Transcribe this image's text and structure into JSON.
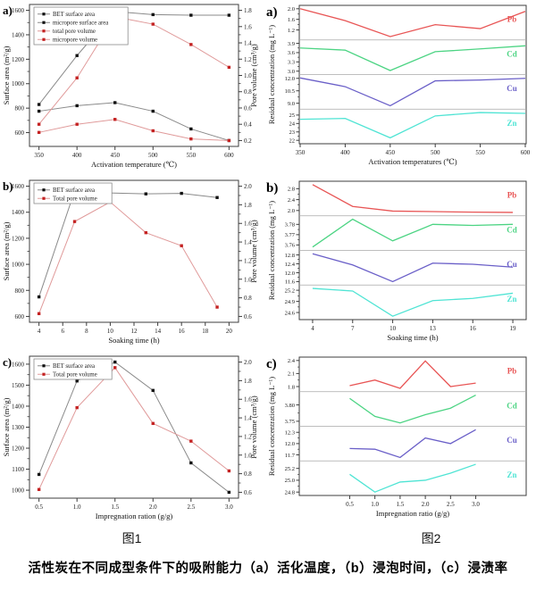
{
  "figure1": {
    "caption": "图1"
  },
  "figure2": {
    "caption": "图2"
  },
  "bottom_caption": "活性炭在不同成型条件下的吸附能力（a）活化温度，（b）浸泡时间，（c）浸渍率",
  "colors": {
    "frame": "#3c3c3c",
    "tick_text": "#1a1a1a",
    "separator": "#a9a9a9",
    "black_line": "#8a8a8a",
    "black_marker": "#111111",
    "red_line": "#e09a9a",
    "red_marker": "#c42222",
    "pb": "#e85555",
    "cd": "#4cd483",
    "cu": "#6a5fc8",
    "zn": "#4fe4d4"
  },
  "chart_data": [
    {
      "figure": "图1",
      "panel_label": "a)",
      "type": "line",
      "variant": "dual_axis",
      "xlabel": "Activation temperature (℃)",
      "x": [
        350,
        400,
        450,
        500,
        550,
        600
      ],
      "x_ticks": [
        350,
        400,
        450,
        500,
        550,
        600
      ],
      "x_tick_labels": [
        "350",
        "400",
        "450",
        "500",
        "550",
        "600"
      ],
      "left_axis": {
        "label": "Surface area (m²/g)",
        "ticks": [
          600,
          800,
          1000,
          1200,
          1400,
          1600
        ],
        "tick_labels": [
          "600",
          "800",
          "1000",
          "1200",
          "1400",
          "1600"
        ]
      },
      "right_axis": {
        "label": "Pore volume (cm³/g)",
        "ticks": [
          0.2,
          0.4,
          0.6,
          0.8,
          1.0,
          1.2,
          1.4,
          1.6,
          1.8
        ],
        "tick_labels": [
          "0.2",
          "0.4",
          "0.6",
          "0.8",
          "1.0",
          "1.2",
          "1.4",
          "1.6",
          "1.8"
        ]
      },
      "legend_position": "top-left",
      "series": [
        {
          "name": "BET surface area",
          "axis": "left",
          "color": "black",
          "values": [
            830,
            1230,
            1590,
            1565,
            1560,
            1560
          ]
        },
        {
          "name": "micropore surface area",
          "axis": "left",
          "color": "black",
          "values": [
            775,
            820,
            845,
            775,
            630,
            535
          ]
        },
        {
          "name": "total pore volume",
          "axis": "right",
          "color": "red",
          "values": [
            0.4,
            0.97,
            1.72,
            1.63,
            1.38,
            1.1
          ]
        },
        {
          "name": "micropore volume",
          "axis": "right",
          "color": "red",
          "values": [
            0.3,
            0.4,
            0.46,
            0.32,
            0.22,
            0.2
          ]
        }
      ]
    },
    {
      "figure": "图2",
      "panel_label": "a)",
      "type": "line",
      "variant": "stacked",
      "xlabel": "Activation temperatures (℃)",
      "ylabel": "Residual concentration (mg L⁻¹)",
      "x": [
        350,
        400,
        450,
        500,
        550,
        600
      ],
      "x_ticks": [
        350,
        400,
        450,
        500,
        550,
        600
      ],
      "x_tick_labels": [
        "350",
        "400",
        "450",
        "500",
        "550",
        "600"
      ],
      "panels": [
        {
          "label": "Pb",
          "color": "pb",
          "ticks": [
            1.2,
            1.6,
            2.0
          ],
          "tick_labels": [
            "1.2",
            "1.6",
            "2.0"
          ],
          "values": [
            2.0,
            1.55,
            0.95,
            1.4,
            1.25,
            1.9
          ]
        },
        {
          "label": "Cd",
          "color": "cd",
          "ticks": [
            3.0,
            3.3,
            3.6,
            3.9
          ],
          "tick_labels": [
            "3.0",
            "3.3",
            "3.6",
            "3.9"
          ],
          "values": [
            3.75,
            3.68,
            3.02,
            3.63,
            3.72,
            3.82
          ]
        },
        {
          "label": "Cu",
          "color": "cu",
          "ticks": [
            9.0,
            10.5,
            12.0
          ],
          "tick_labels": [
            "9.0",
            "10.5",
            "12.0"
          ],
          "values": [
            12.05,
            11.0,
            8.7,
            11.7,
            11.8,
            12.0
          ]
        },
        {
          "label": "Zn",
          "color": "zn",
          "ticks": [
            22,
            23,
            24,
            25
          ],
          "tick_labels": [
            "22",
            "23",
            "24",
            "25"
          ],
          "values": [
            24.5,
            24.6,
            22.3,
            24.9,
            25.3,
            25.2
          ]
        }
      ]
    },
    {
      "figure": "图1",
      "panel_label": "b)",
      "type": "line",
      "variant": "dual_axis",
      "xlabel": "Soaking time (h)",
      "x": [
        4,
        7,
        10,
        13,
        16,
        19
      ],
      "x_ticks": [
        4,
        6,
        8,
        10,
        12,
        14,
        16,
        18,
        20
      ],
      "x_tick_labels": [
        "4",
        "6",
        "8",
        "10",
        "12",
        "14",
        "16",
        "18",
        "20"
      ],
      "left_axis": {
        "label": "Surface area (m²/g)",
        "ticks": [
          600,
          800,
          1000,
          1200,
          1400,
          1600
        ],
        "tick_labels": [
          "600",
          "800",
          "1000",
          "1200",
          "1400",
          "1600"
        ]
      },
      "right_axis": {
        "label": "Pore volume (cm³/g)",
        "ticks": [
          0.6,
          0.8,
          1.0,
          1.2,
          1.4,
          1.6,
          1.8,
          2.0
        ],
        "tick_labels": [
          "0.6",
          "0.8",
          "1.0",
          "1.2",
          "1.4",
          "1.6",
          "1.8",
          "2.0"
        ]
      },
      "legend_position": "top-left",
      "series": [
        {
          "name": "BET surface area",
          "axis": "left",
          "color": "black",
          "values": [
            750,
            1563,
            1548,
            1541,
            1545,
            1513
          ]
        },
        {
          "name": "Total pore volume",
          "axis": "right",
          "color": "red",
          "values": [
            0.63,
            1.62,
            1.83,
            1.5,
            1.36,
            0.7
          ]
        }
      ]
    },
    {
      "figure": "图2",
      "panel_label": "b)",
      "type": "line",
      "variant": "stacked",
      "xlabel": "Soaking time (h)",
      "ylabel": "Residual concentration (mg L⁻¹)",
      "x": [
        4,
        7,
        10,
        13,
        16,
        19
      ],
      "x_ticks": [
        4,
        7,
        10,
        13,
        16,
        19
      ],
      "x_tick_labels": [
        "4",
        "7",
        "10",
        "13",
        "16",
        "19"
      ],
      "panels": [
        {
          "label": "Pb",
          "color": "pb",
          "ticks": [
            2.0,
            2.4,
            2.8
          ],
          "tick_labels": [
            "2.0",
            "2.4",
            "2.8"
          ],
          "values": [
            2.95,
            2.15,
            1.98,
            1.96,
            1.94,
            1.93
          ]
        },
        {
          "label": "Cd",
          "color": "cd",
          "ticks": [
            3.76,
            3.77,
            3.78
          ],
          "tick_labels": [
            "3.76",
            "3.77",
            "3.78"
          ],
          "values": [
            3.758,
            3.785,
            3.764,
            3.78,
            3.779,
            3.78
          ]
        },
        {
          "label": "Cu",
          "color": "cu",
          "ticks": [
            11.6,
            12.0,
            12.4,
            12.8
          ],
          "tick_labels": [
            "11.6",
            "12.0",
            "12.4",
            "12.8"
          ],
          "values": [
            12.85,
            12.35,
            11.6,
            12.43,
            12.38,
            12.25
          ]
        },
        {
          "label": "Zn",
          "color": "zn",
          "ticks": [
            24.6,
            24.9,
            25.2
          ],
          "tick_labels": [
            "24.6",
            "24.9",
            "25.2"
          ],
          "values": [
            25.25,
            25.18,
            24.5,
            24.92,
            24.98,
            25.12
          ]
        }
      ]
    },
    {
      "figure": "图1",
      "panel_label": "c)",
      "type": "line",
      "variant": "dual_axis",
      "xlabel": "Impregnation ration (g/g)",
      "x": [
        0.5,
        1.0,
        1.5,
        2.0,
        2.5,
        3.0
      ],
      "x_ticks": [
        0.5,
        1.0,
        1.5,
        2.0,
        2.5,
        3.0
      ],
      "x_tick_labels": [
        "0.5",
        "1.0",
        "1.5",
        "2.0",
        "2.5",
        "3.0"
      ],
      "left_axis": {
        "label": "Surface area (m²/g)",
        "ticks": [
          1000,
          1100,
          1200,
          1300,
          1400,
          1500,
          1600
        ],
        "tick_labels": [
          "1000",
          "1100",
          "1200",
          "1300",
          "1400",
          "1500",
          "1600"
        ]
      },
      "right_axis": {
        "label": "Pore volume (cm³/g)",
        "ticks": [
          0.6,
          0.8,
          1.0,
          1.2,
          1.4,
          1.6,
          1.8,
          2.0
        ],
        "tick_labels": [
          "0.6",
          "0.8",
          "1.0",
          "1.2",
          "1.4",
          "1.6",
          "1.8",
          "2.0"
        ]
      },
      "legend_position": "top-left",
      "series": [
        {
          "name": "BET surface area",
          "axis": "left",
          "color": "black",
          "values": [
            1075,
            1520,
            1610,
            1475,
            1130,
            990
          ]
        },
        {
          "name": "Total pore volume",
          "axis": "right",
          "color": "red",
          "values": [
            0.63,
            1.51,
            1.94,
            1.34,
            1.15,
            0.83
          ]
        }
      ]
    },
    {
      "figure": "图2",
      "panel_label": "c)",
      "type": "line",
      "variant": "stacked",
      "xlabel": "Impregnation ratio (g/g)",
      "ylabel": "Residual concentration (mg L⁻¹)",
      "x": [
        0.5,
        1.0,
        1.5,
        2.0,
        2.5,
        3.0
      ],
      "x_ticks": [
        0.5,
        1.0,
        1.5,
        2.0,
        2.5,
        3.0
      ],
      "x_tick_labels": [
        "0.5",
        "1.0",
        "1.5",
        "2.0",
        "2.5",
        "3.0"
      ],
      "panels": [
        {
          "label": "Pb",
          "color": "pb",
          "ticks": [
            1.8,
            2.1,
            2.4
          ],
          "tick_labels": [
            "1.8",
            "2.1",
            "2.4"
          ],
          "values": [
            1.82,
            1.95,
            1.76,
            2.39,
            1.8,
            1.88
          ]
        },
        {
          "label": "Cd",
          "color": "cd",
          "ticks": [
            3.75,
            3.8
          ],
          "tick_labels": [
            "3.75",
            "3.80"
          ],
          "values": [
            3.82,
            3.765,
            3.745,
            3.77,
            3.79,
            3.83
          ]
        },
        {
          "label": "Cu",
          "color": "cu",
          "ticks": [
            11.7,
            12.0,
            12.3
          ],
          "tick_labels": [
            "11.7",
            "12.0",
            "12.3"
          ],
          "values": [
            11.87,
            11.85,
            11.63,
            12.15,
            12.0,
            12.37
          ]
        },
        {
          "label": "Zn",
          "color": "zn",
          "ticks": [
            24.8,
            25.0,
            25.2
          ],
          "tick_labels": [
            "24.8",
            "25.0",
            "25.2"
          ],
          "values": [
            25.1,
            24.8,
            24.97,
            25.0,
            25.12,
            25.27
          ]
        }
      ]
    }
  ]
}
